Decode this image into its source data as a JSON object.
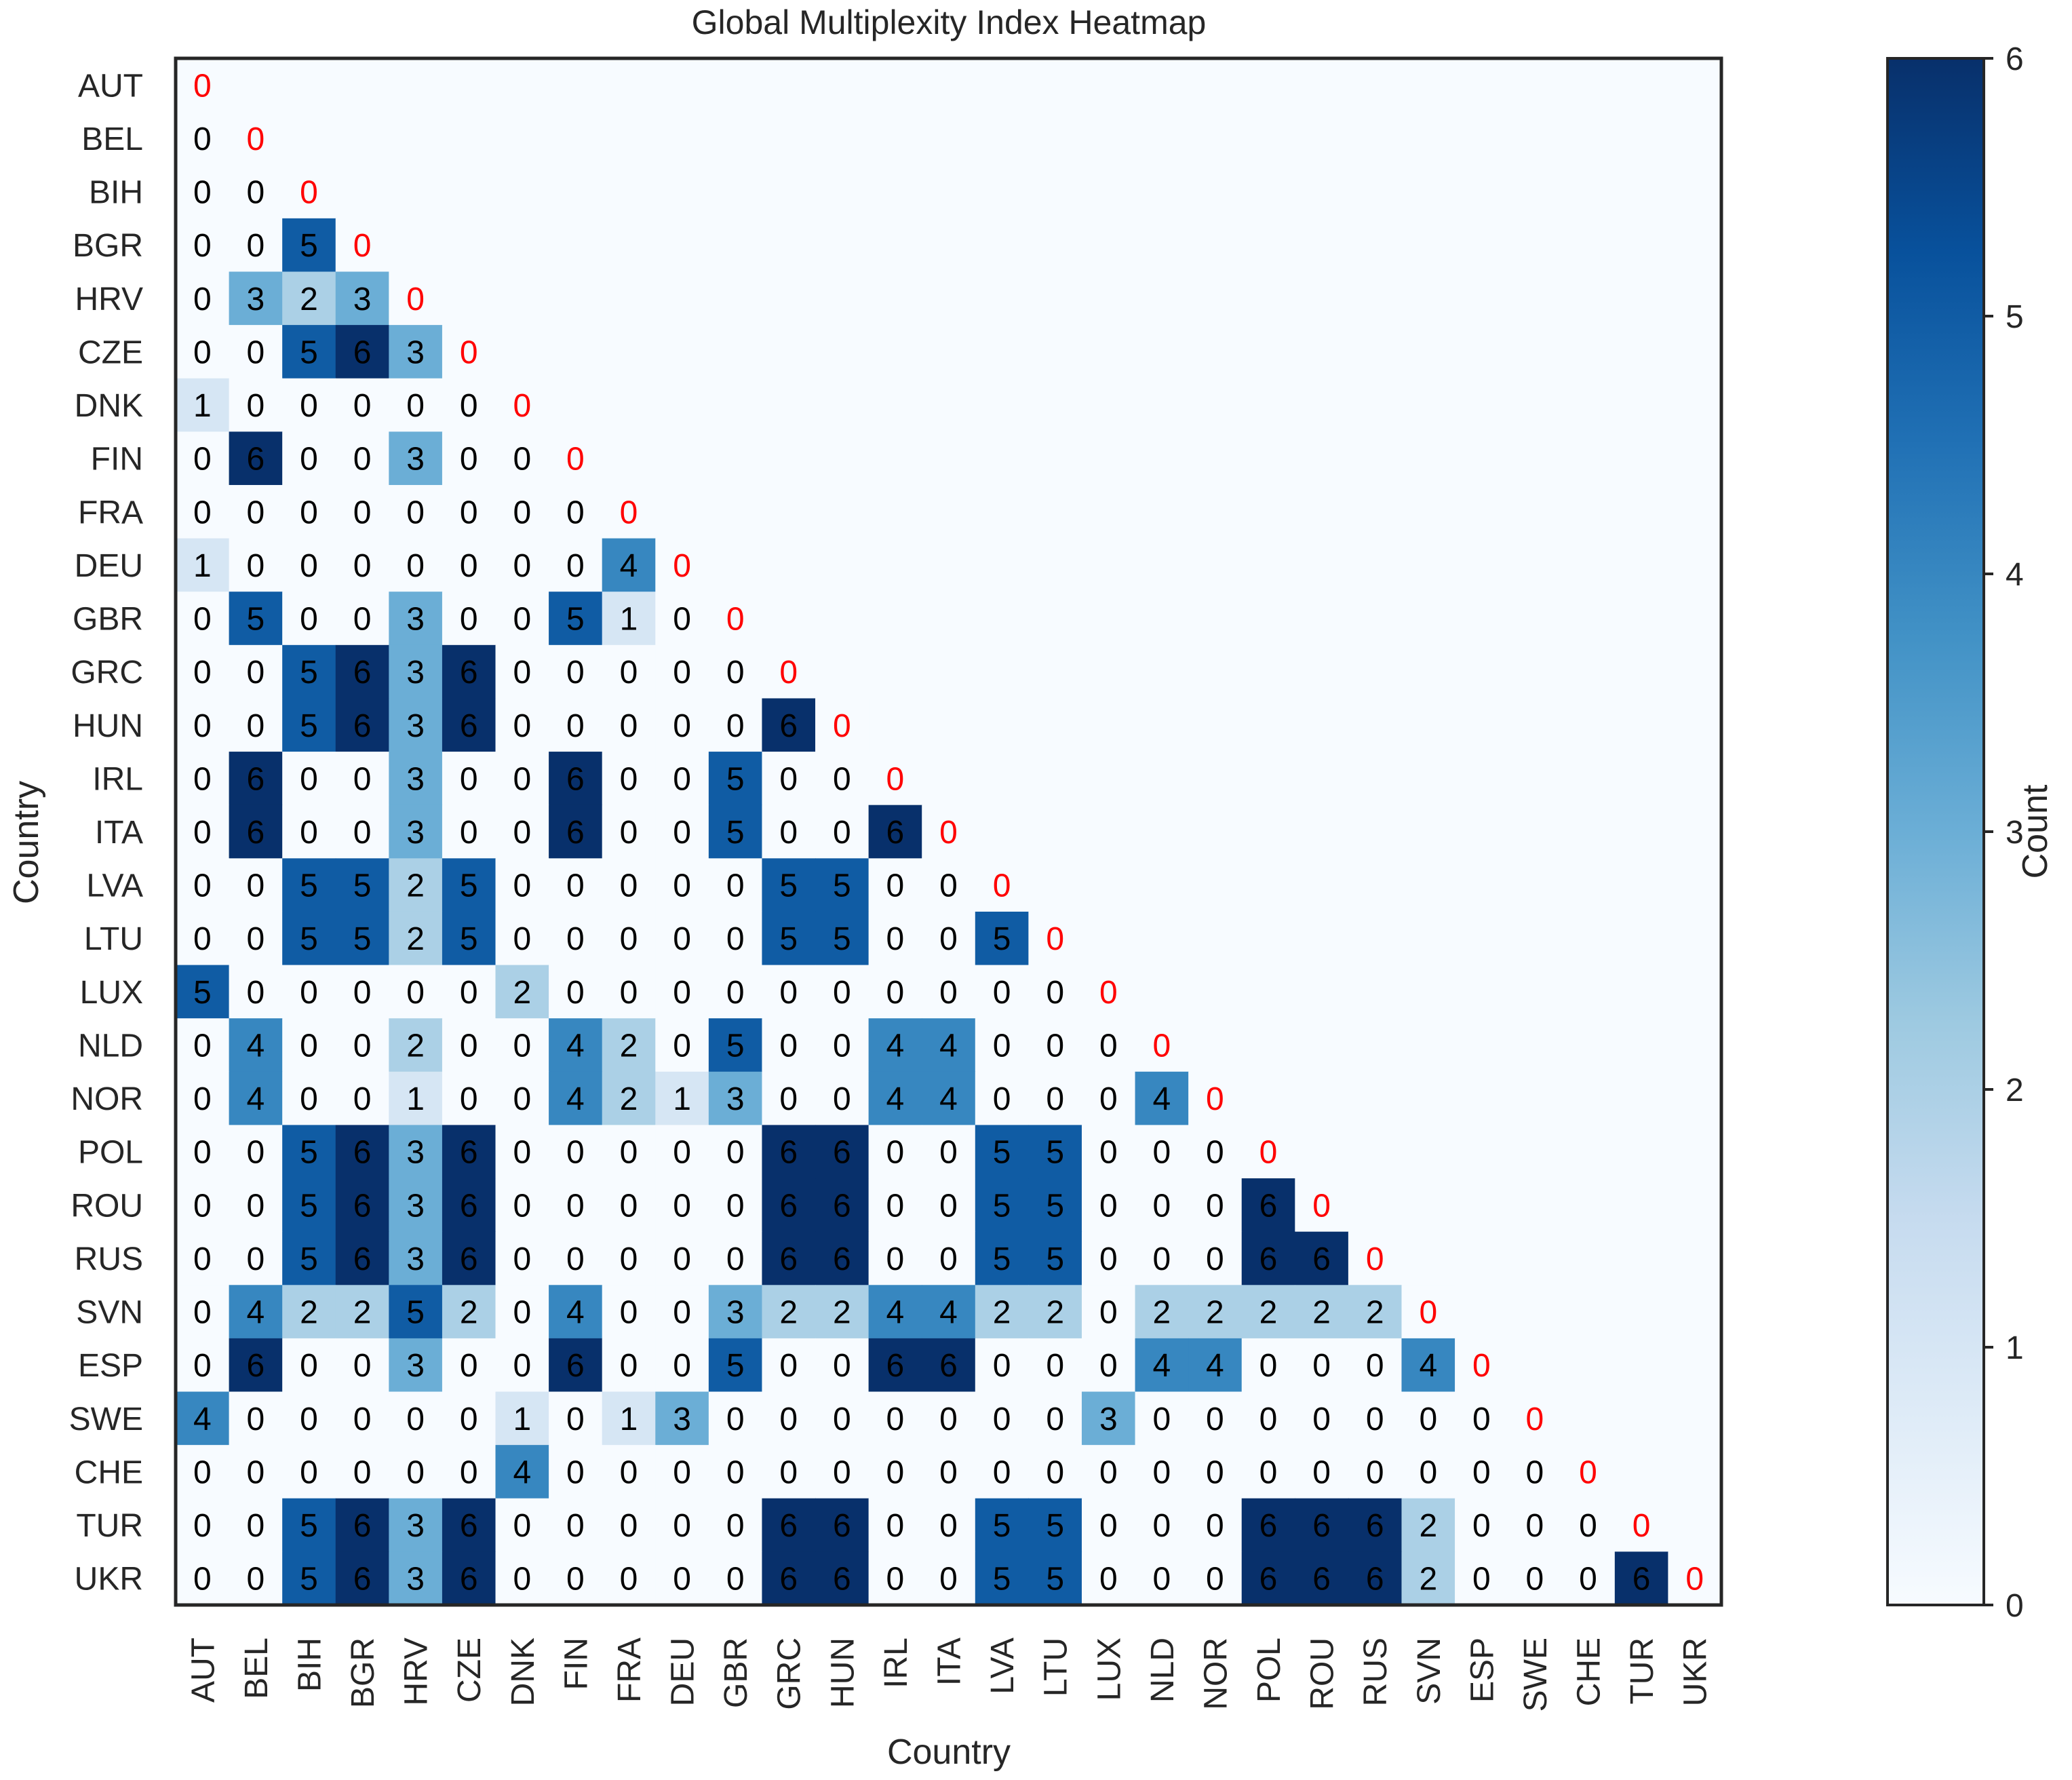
{
  "chart_data": {
    "type": "heatmap",
    "title": "Global Multiplexity Index Heatmap",
    "xlabel": "Country",
    "ylabel": "Country",
    "colorbar": {
      "label": "Count",
      "range": [
        0,
        6
      ],
      "ticks": [
        "0",
        "1",
        "2",
        "3",
        "4",
        "5",
        "6"
      ],
      "colormap": "Blues"
    },
    "diagonal_text_color": "#ff0000",
    "countries": [
      "AUT",
      "BEL",
      "BIH",
      "BGR",
      "HRV",
      "CZE",
      "DNK",
      "FIN",
      "FRA",
      "DEU",
      "GBR",
      "GRC",
      "HUN",
      "IRL",
      "ITA",
      "LVA",
      "LTU",
      "LUX",
      "NLD",
      "NOR",
      "POL",
      "ROU",
      "RUS",
      "SVN",
      "ESP",
      "SWE",
      "CHE",
      "TUR",
      "UKR"
    ],
    "matrix": [
      [
        0
      ],
      [
        0,
        0
      ],
      [
        0,
        0,
        0
      ],
      [
        0,
        0,
        5,
        0
      ],
      [
        0,
        3,
        2,
        3,
        0
      ],
      [
        0,
        0,
        5,
        6,
        3,
        0
      ],
      [
        1,
        0,
        0,
        0,
        0,
        0,
        0
      ],
      [
        0,
        6,
        0,
        0,
        3,
        0,
        0,
        0
      ],
      [
        0,
        0,
        0,
        0,
        0,
        0,
        0,
        0,
        0
      ],
      [
        1,
        0,
        0,
        0,
        0,
        0,
        0,
        0,
        4,
        0
      ],
      [
        0,
        5,
        0,
        0,
        3,
        0,
        0,
        5,
        1,
        0,
        0
      ],
      [
        0,
        0,
        5,
        6,
        3,
        6,
        0,
        0,
        0,
        0,
        0,
        0
      ],
      [
        0,
        0,
        5,
        6,
        3,
        6,
        0,
        0,
        0,
        0,
        0,
        6,
        0
      ],
      [
        0,
        6,
        0,
        0,
        3,
        0,
        0,
        6,
        0,
        0,
        5,
        0,
        0,
        0
      ],
      [
        0,
        6,
        0,
        0,
        3,
        0,
        0,
        6,
        0,
        0,
        5,
        0,
        0,
        6,
        0
      ],
      [
        0,
        0,
        5,
        5,
        2,
        5,
        0,
        0,
        0,
        0,
        0,
        5,
        5,
        0,
        0,
        0
      ],
      [
        0,
        0,
        5,
        5,
        2,
        5,
        0,
        0,
        0,
        0,
        0,
        5,
        5,
        0,
        0,
        5,
        0
      ],
      [
        5,
        0,
        0,
        0,
        0,
        0,
        2,
        0,
        0,
        0,
        0,
        0,
        0,
        0,
        0,
        0,
        0,
        0
      ],
      [
        0,
        4,
        0,
        0,
        2,
        0,
        0,
        4,
        2,
        0,
        5,
        0,
        0,
        4,
        4,
        0,
        0,
        0,
        0
      ],
      [
        0,
        4,
        0,
        0,
        1,
        0,
        0,
        4,
        2,
        1,
        3,
        0,
        0,
        4,
        4,
        0,
        0,
        0,
        4,
        0
      ],
      [
        0,
        0,
        5,
        6,
        3,
        6,
        0,
        0,
        0,
        0,
        0,
        6,
        6,
        0,
        0,
        5,
        5,
        0,
        0,
        0,
        0
      ],
      [
        0,
        0,
        5,
        6,
        3,
        6,
        0,
        0,
        0,
        0,
        0,
        6,
        6,
        0,
        0,
        5,
        5,
        0,
        0,
        0,
        6,
        0
      ],
      [
        0,
        0,
        5,
        6,
        3,
        6,
        0,
        0,
        0,
        0,
        0,
        6,
        6,
        0,
        0,
        5,
        5,
        0,
        0,
        0,
        6,
        6,
        0
      ],
      [
        0,
        4,
        2,
        2,
        5,
        2,
        0,
        4,
        0,
        0,
        3,
        2,
        2,
        4,
        4,
        2,
        2,
        0,
        2,
        2,
        2,
        2,
        2,
        0
      ],
      [
        0,
        6,
        0,
        0,
        3,
        0,
        0,
        6,
        0,
        0,
        5,
        0,
        0,
        6,
        6,
        0,
        0,
        0,
        4,
        4,
        0,
        0,
        0,
        4,
        0
      ],
      [
        4,
        0,
        0,
        0,
        0,
        0,
        1,
        0,
        1,
        3,
        0,
        0,
        0,
        0,
        0,
        0,
        0,
        3,
        0,
        0,
        0,
        0,
        0,
        0,
        0,
        0
      ],
      [
        0,
        0,
        0,
        0,
        0,
        0,
        4,
        0,
        0,
        0,
        0,
        0,
        0,
        0,
        0,
        0,
        0,
        0,
        0,
        0,
        0,
        0,
        0,
        0,
        0,
        0,
        0
      ],
      [
        0,
        0,
        5,
        6,
        3,
        6,
        0,
        0,
        0,
        0,
        0,
        6,
        6,
        0,
        0,
        5,
        5,
        0,
        0,
        0,
        6,
        6,
        6,
        2,
        0,
        0,
        0,
        0
      ],
      [
        0,
        0,
        5,
        6,
        3,
        6,
        0,
        0,
        0,
        0,
        0,
        6,
        6,
        0,
        0,
        5,
        5,
        0,
        0,
        0,
        6,
        6,
        6,
        2,
        0,
        0,
        0,
        6,
        0
      ]
    ]
  }
}
